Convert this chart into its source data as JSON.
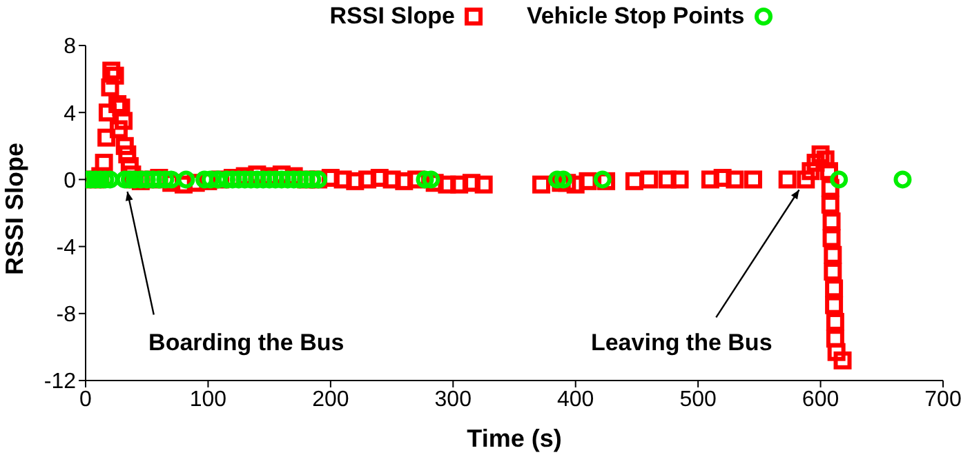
{
  "chart_data": {
    "type": "scatter",
    "xlabel": "Time (s)",
    "ylabel": "RSSI Slope",
    "xlim": [
      0,
      700
    ],
    "xticks": [
      0,
      100,
      200,
      300,
      400,
      500,
      600,
      700
    ],
    "ylim": [
      -12,
      8
    ],
    "yticks": [
      -12,
      -8,
      -4,
      0,
      4,
      8
    ],
    "grid": false,
    "legend": "top",
    "series": [
      {
        "name": "RSSI Slope",
        "color": "#ff0000",
        "marker": "square",
        "x": [
          8,
          12,
          15,
          17,
          18,
          20,
          21,
          24,
          26,
          27,
          29,
          31,
          32,
          34,
          36,
          38,
          40,
          45,
          55,
          60,
          70,
          80,
          90,
          100,
          110,
          120,
          130,
          140,
          150,
          160,
          170,
          180,
          190,
          200,
          210,
          220,
          230,
          240,
          250,
          260,
          270,
          285,
          295,
          305,
          315,
          325,
          372,
          388,
          393,
          400,
          410,
          425,
          448,
          460,
          475,
          485,
          510,
          520,
          530,
          545,
          573,
          588,
          592,
          596,
          600,
          604,
          607,
          608,
          608,
          609,
          609,
          610,
          610,
          611,
          611,
          612,
          612,
          613,
          618
        ],
        "values": [
          0,
          0.2,
          1,
          2.5,
          4,
          5.5,
          6.5,
          6.2,
          4.5,
          3,
          4.3,
          3.5,
          2,
          1.5,
          0.8,
          0.3,
          0,
          -0.1,
          0,
          0.1,
          -0.2,
          -0.3,
          -0.2,
          -0.1,
          0,
          0.1,
          0.2,
          0.3,
          0.2,
          0.3,
          0.2,
          0,
          0,
          0.1,
          0,
          -0.1,
          0,
          0.1,
          0,
          -0.1,
          0,
          -0.2,
          -0.3,
          -0.3,
          -0.2,
          -0.3,
          -0.3,
          -0.2,
          -0.2,
          -0.3,
          -0.1,
          -0.1,
          -0.1,
          0,
          0,
          0,
          0,
          0.1,
          0,
          0,
          0,
          0,
          0.5,
          1,
          1.5,
          1.2,
          0.5,
          -0.5,
          -1.5,
          -2.5,
          -3.5,
          -4.5,
          -5.5,
          -6.5,
          -7.5,
          -8.5,
          -9.5,
          -10.3,
          -10.8
        ]
      },
      {
        "name": "Vehicle Stop Points",
        "color": "#00ee00",
        "marker": "circle",
        "x": [
          0,
          4,
          8,
          12,
          16,
          20,
          32,
          36,
          40,
          45,
          50,
          55,
          60,
          65,
          70,
          82,
          97,
          102,
          108,
          115,
          120,
          125,
          130,
          135,
          140,
          145,
          150,
          155,
          160,
          165,
          170,
          175,
          180,
          185,
          190,
          277,
          282,
          385,
          390,
          422,
          615,
          667
        ],
        "values": [
          0,
          0,
          0,
          0,
          0,
          0,
          0,
          0,
          0,
          0,
          0,
          0,
          0,
          0,
          0,
          0,
          0,
          0,
          0,
          0,
          0,
          0,
          0,
          0,
          0,
          0,
          0,
          0,
          0,
          0,
          0,
          0,
          0,
          0,
          0,
          0,
          0,
          0,
          0,
          0,
          0,
          0
        ]
      }
    ],
    "annotations": [
      {
        "text": "Boarding the Bus",
        "x": 32,
        "y": 0
      },
      {
        "text": "Leaving the Bus",
        "x": 588,
        "y": 0
      }
    ]
  }
}
